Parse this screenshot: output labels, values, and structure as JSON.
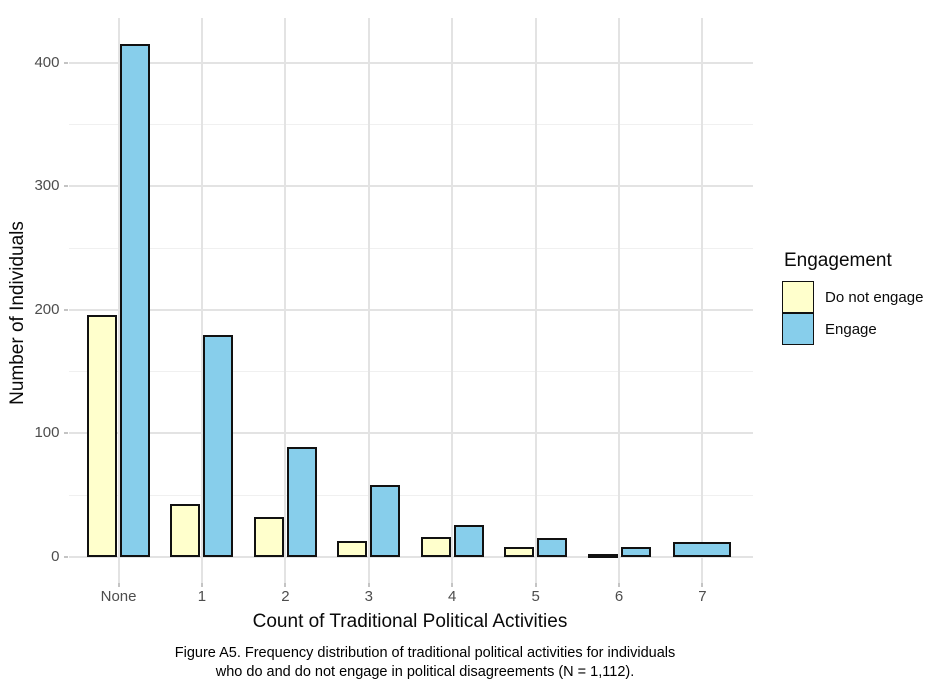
{
  "figure": {
    "caption_lines": [
      "Figure A5. Frequency distribution of traditional political activities for individuals",
      "who do and do not engage in political disagreements (N = 1,112)."
    ]
  },
  "chart_data": {
    "type": "bar",
    "title": "",
    "xlabel": "Count of Traditional Political Activities",
    "ylabel": "Number of Individuals",
    "categories": [
      "None",
      "1",
      "2",
      "3",
      "4",
      "5",
      "6",
      "7"
    ],
    "series": [
      {
        "name": "Do not engage",
        "color": "#FFFFCC",
        "values": [
          196,
          43,
          32,
          13,
          16,
          8,
          1,
          0
        ]
      },
      {
        "name": "Engage",
        "color": "#87CEEB",
        "values": [
          415,
          180,
          89,
          58,
          26,
          15,
          8,
          12
        ]
      }
    ],
    "bar_border_color": "#111111",
    "ylim": [
      0,
      435
    ],
    "y_major_ticks": [
      0,
      100,
      200,
      300,
      400
    ],
    "y_minor_gridlines": [
      50,
      150,
      250,
      350
    ],
    "grid": "horizontal major and minor gridlines; vertical major gridline at each category; no panel border",
    "gridline_color_major": "#E3E3E3",
    "gridline_color_minor": "#F0F0F0",
    "background": "#FFFFFF",
    "legend": {
      "title": "Engagement",
      "position": "right",
      "items": [
        {
          "label": "Do not engage",
          "color": "#FFFFCC"
        },
        {
          "label": "Engage",
          "color": "#87CEEB"
        }
      ]
    }
  }
}
